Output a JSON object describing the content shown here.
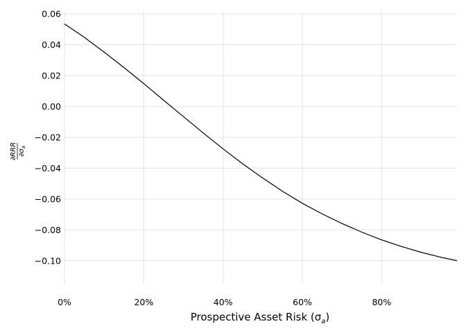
{
  "chart_data": {
    "type": "line",
    "title": "",
    "xlabel": "Prospective Asset Risk (σ",
    "xlabel_sub": "a",
    "xlabel_close": ")",
    "ylabel_numerator": "∂RRR",
    "ylabel_denominator": "∂σ",
    "ylabel_denominator_sub": "a",
    "xlim": [
      0,
      0.99
    ],
    "ylim": [
      -0.11,
      0.06
    ],
    "grid": true,
    "x_ticks": [
      {
        "value": 0.0,
        "label": "0%"
      },
      {
        "value": 0.2,
        "label": "20%"
      },
      {
        "value": 0.4,
        "label": "40%"
      },
      {
        "value": 0.6,
        "label": "60%"
      },
      {
        "value": 0.8,
        "label": "80%"
      }
    ],
    "y_ticks": [
      {
        "value": 0.06,
        "label": "0.06"
      },
      {
        "value": 0.04,
        "label": "0.04"
      },
      {
        "value": 0.02,
        "label": "0.02"
      },
      {
        "value": 0.0,
        "label": "0.00"
      },
      {
        "value": -0.02,
        "label": "−0.02"
      },
      {
        "value": -0.04,
        "label": "−0.04"
      },
      {
        "value": -0.06,
        "label": "−0.06"
      },
      {
        "value": -0.08,
        "label": "−0.08"
      },
      {
        "value": -0.1,
        "label": "−0.10"
      }
    ],
    "series": [
      {
        "color": "#000000",
        "x": [
          0.0,
          0.05,
          0.1,
          0.15,
          0.2,
          0.25,
          0.3,
          0.35,
          0.4,
          0.45,
          0.5,
          0.55,
          0.6,
          0.65,
          0.7,
          0.75,
          0.8,
          0.85,
          0.9,
          0.95,
          0.99
        ],
        "y": [
          0.0535,
          0.0448,
          0.0352,
          0.0252,
          0.0148,
          0.004,
          -0.0066,
          -0.0172,
          -0.0275,
          -0.0373,
          -0.0464,
          -0.055,
          -0.0628,
          -0.0697,
          -0.0759,
          -0.0815,
          -0.0865,
          -0.0908,
          -0.0946,
          -0.0978,
          -0.1
        ]
      }
    ]
  }
}
